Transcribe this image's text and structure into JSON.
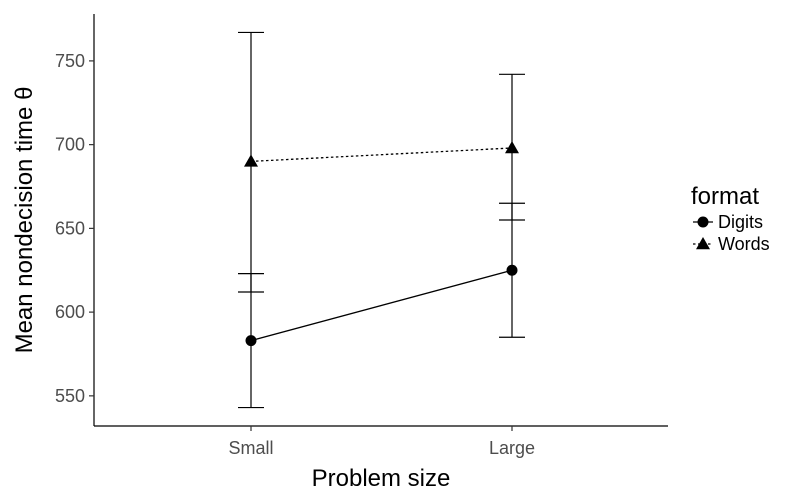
{
  "chart_data": {
    "type": "line",
    "title": "",
    "xlabel": "Problem size",
    "ylabel": "Mean nondecision time θ",
    "categories": [
      "Small",
      "Large"
    ],
    "ylim": [
      532,
      778
    ],
    "yticks": [
      550,
      600,
      650,
      700,
      750
    ],
    "grid": false,
    "legend": {
      "title": "format",
      "placement": "right"
    },
    "series": [
      {
        "name": "Digits",
        "marker": "circle",
        "line": "solid",
        "values": [
          583,
          625
        ],
        "lower": [
          543,
          585
        ],
        "upper": [
          623,
          665
        ]
      },
      {
        "name": "Words",
        "marker": "triangle",
        "line": "dotted",
        "values": [
          690,
          698
        ],
        "lower": [
          612,
          655
        ],
        "upper": [
          767,
          742
        ]
      }
    ],
    "colors": {
      "line": "#000000",
      "tick_text": "#4d4d4d"
    }
  }
}
